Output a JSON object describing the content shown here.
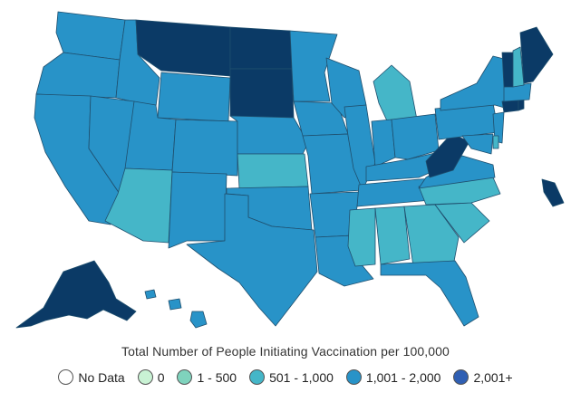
{
  "map": {
    "title": "Total Number of People Initiating Vaccination per 100,000",
    "region": "United States",
    "colors": {
      "dark": "#0b3a66",
      "mid": "#2893c8",
      "light": "#45b6c8",
      "border": "#1f4f6e"
    },
    "states": [
      {
        "code": "WA",
        "tier": "mid"
      },
      {
        "code": "OR",
        "tier": "mid"
      },
      {
        "code": "CA",
        "tier": "mid"
      },
      {
        "code": "ID",
        "tier": "mid"
      },
      {
        "code": "NV",
        "tier": "mid"
      },
      {
        "code": "MT",
        "tier": "dark"
      },
      {
        "code": "WY",
        "tier": "mid"
      },
      {
        "code": "UT",
        "tier": "mid"
      },
      {
        "code": "AZ",
        "tier": "light"
      },
      {
        "code": "CO",
        "tier": "mid"
      },
      {
        "code": "NM",
        "tier": "mid"
      },
      {
        "code": "ND",
        "tier": "dark"
      },
      {
        "code": "SD",
        "tier": "dark"
      },
      {
        "code": "NE",
        "tier": "mid"
      },
      {
        "code": "KS",
        "tier": "light"
      },
      {
        "code": "OK",
        "tier": "mid"
      },
      {
        "code": "TX",
        "tier": "mid"
      },
      {
        "code": "MN",
        "tier": "mid"
      },
      {
        "code": "IA",
        "tier": "mid"
      },
      {
        "code": "MO",
        "tier": "mid"
      },
      {
        "code": "AR",
        "tier": "mid"
      },
      {
        "code": "LA",
        "tier": "mid"
      },
      {
        "code": "WI",
        "tier": "mid"
      },
      {
        "code": "MI",
        "tier": "light"
      },
      {
        "code": "IL",
        "tier": "mid"
      },
      {
        "code": "IN",
        "tier": "mid"
      },
      {
        "code": "OH",
        "tier": "mid"
      },
      {
        "code": "KY",
        "tier": "mid"
      },
      {
        "code": "TN",
        "tier": "mid"
      },
      {
        "code": "MS",
        "tier": "light"
      },
      {
        "code": "AL",
        "tier": "light"
      },
      {
        "code": "GA",
        "tier": "light"
      },
      {
        "code": "FL",
        "tier": "mid"
      },
      {
        "code": "SC",
        "tier": "light"
      },
      {
        "code": "NC",
        "tier": "light"
      },
      {
        "code": "VA",
        "tier": "mid"
      },
      {
        "code": "WV",
        "tier": "dark"
      },
      {
        "code": "PA",
        "tier": "mid"
      },
      {
        "code": "NY",
        "tier": "mid"
      },
      {
        "code": "NJ",
        "tier": "mid"
      },
      {
        "code": "MD",
        "tier": "mid"
      },
      {
        "code": "DE",
        "tier": "light"
      },
      {
        "code": "CT",
        "tier": "dark"
      },
      {
        "code": "RI",
        "tier": "dark"
      },
      {
        "code": "MA",
        "tier": "mid"
      },
      {
        "code": "VT",
        "tier": "dark"
      },
      {
        "code": "NH",
        "tier": "light"
      },
      {
        "code": "ME",
        "tier": "dark"
      },
      {
        "code": "AK",
        "tier": "dark"
      },
      {
        "code": "HI",
        "tier": "mid"
      },
      {
        "code": "PR",
        "tier": "dark"
      }
    ]
  },
  "legend": [
    {
      "label": "No Data",
      "color": "#ffffff"
    },
    {
      "label": "0",
      "color": "#c9f2d4"
    },
    {
      "label": "1 - 500",
      "color": "#7fd3bd"
    },
    {
      "label": "501 - 1,000",
      "color": "#45b6c8"
    },
    {
      "label": "1,001 - 2,000",
      "color": "#2893c8"
    },
    {
      "label": "2,001+",
      "color": "#2f5fb3"
    }
  ]
}
